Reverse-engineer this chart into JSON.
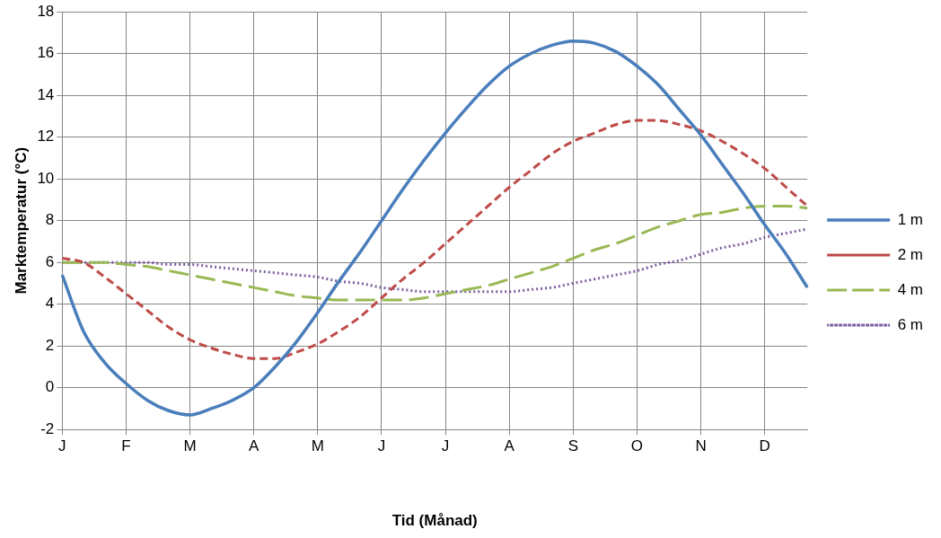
{
  "chart_data": {
    "type": "line",
    "xlabel": "Tid (Månad)",
    "ylabel": "Marktemperatur (°C)",
    "categories": [
      "J",
      null,
      null,
      "F",
      null,
      null,
      "M",
      null,
      null,
      "A",
      null,
      null,
      "M",
      null,
      null,
      "J",
      null,
      null,
      "J",
      null,
      null,
      "A",
      null,
      null,
      "S",
      null,
      null,
      "O",
      null,
      null,
      "N",
      null,
      null,
      "D",
      null,
      null
    ],
    "ylim": [
      -2,
      18
    ],
    "yticks": [
      -2,
      0,
      2,
      4,
      6,
      8,
      10,
      12,
      14,
      16,
      18
    ],
    "grid": true,
    "legend": "right",
    "marker": "none",
    "series": [
      {
        "name": "1 m",
        "color": "#4a7ebb",
        "line_style": "solid",
        "values": [
          5.4,
          2.7,
          1.2,
          0.2,
          -0.6,
          -1.1,
          -1.3,
          -1.0,
          -0.6,
          0.0,
          1.0,
          2.2,
          3.6,
          5.1,
          6.5,
          8.0,
          9.5,
          10.9,
          12.2,
          13.4,
          14.5,
          15.4,
          16.0,
          16.4,
          16.6,
          16.5,
          16.1,
          15.4,
          14.5,
          13.3,
          12.1,
          10.7,
          9.3,
          7.8,
          6.4,
          4.8
        ]
      },
      {
        "name": "2 m",
        "color": "#be4b48",
        "line_style": "dashed",
        "values": [
          6.2,
          6.0,
          5.3,
          4.5,
          3.7,
          2.9,
          2.3,
          1.9,
          1.6,
          1.4,
          1.4,
          1.7,
          2.1,
          2.7,
          3.4,
          4.3,
          5.2,
          6.0,
          6.9,
          7.8,
          8.7,
          9.6,
          10.4,
          11.2,
          11.8,
          12.2,
          12.6,
          12.8,
          12.8,
          12.6,
          12.3,
          11.8,
          11.2,
          10.5,
          9.6,
          8.7
        ]
      },
      {
        "name": "4 m",
        "color": "#98b954",
        "line_style": "dashed",
        "values": [
          6.0,
          6.0,
          6.0,
          5.9,
          5.8,
          5.6,
          5.4,
          5.2,
          5.0,
          4.8,
          4.6,
          4.4,
          4.3,
          4.2,
          4.2,
          4.2,
          4.2,
          4.3,
          4.5,
          4.7,
          4.9,
          5.2,
          5.5,
          5.8,
          6.2,
          6.6,
          6.9,
          7.3,
          7.7,
          8.0,
          8.3,
          8.4,
          8.6,
          8.7,
          8.7,
          8.6
        ]
      },
      {
        "name": "6 m",
        "color": "#7d60a0",
        "line_style": "dotted",
        "values": [
          6.0,
          6.0,
          6.0,
          6.0,
          6.0,
          5.9,
          5.9,
          5.8,
          5.7,
          5.6,
          5.5,
          5.4,
          5.3,
          5.1,
          5.0,
          4.8,
          4.7,
          4.6,
          4.6,
          4.6,
          4.6,
          4.6,
          4.7,
          4.8,
          5.0,
          5.2,
          5.4,
          5.6,
          5.9,
          6.1,
          6.4,
          6.7,
          6.9,
          7.2,
          7.4,
          7.6
        ]
      }
    ]
  }
}
